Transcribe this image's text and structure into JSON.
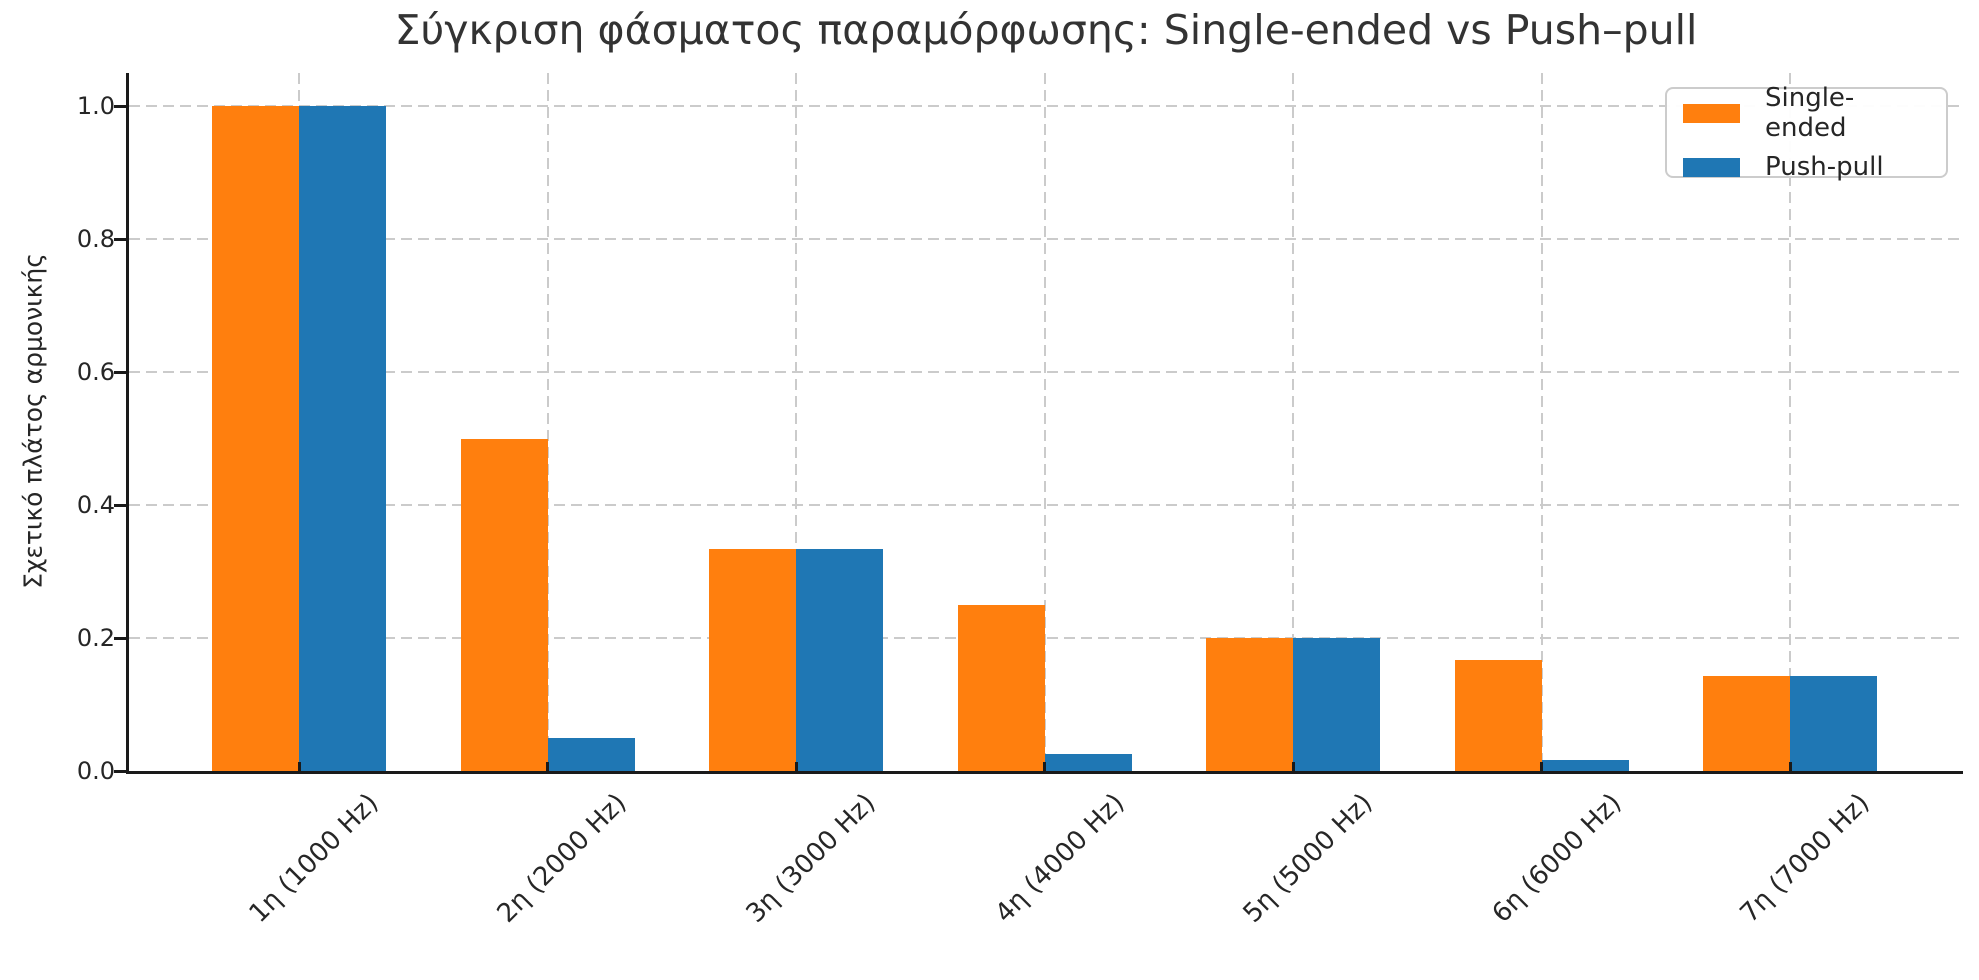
{
  "chart_data": {
    "type": "bar",
    "title": "Σύγκριση φάσματος παραμόρφωσης: Single-ended vs Push–pull",
    "ylabel": "Σχετικό πλάτος αρμονικής",
    "xlabel": "",
    "categories": [
      "1η (1000 Hz)",
      "2η (2000 Hz)",
      "3η (3000 Hz)",
      "4η (4000 Hz)",
      "5η (5000 Hz)",
      "6η (6000 Hz)",
      "7η (7000 Hz)"
    ],
    "series": [
      {
        "name": "Single-ended",
        "color": "#ff7f0e",
        "values": [
          1.0,
          0.5,
          0.3333,
          0.25,
          0.2,
          0.1667,
          0.1429
        ]
      },
      {
        "name": "Push-pull",
        "color": "#1f77b4",
        "values": [
          1.0,
          0.05,
          0.3333,
          0.025,
          0.2,
          0.0167,
          0.1429
        ]
      }
    ],
    "ylim": [
      0,
      1.05
    ],
    "yticks": [
      "0.0",
      "0.2",
      "0.4",
      "0.6",
      "0.8",
      "1.0"
    ],
    "grid": "dashed",
    "grid_color": "#cbcbcb",
    "legend_position": "upper right",
    "xtick_rotation_deg": 45
  }
}
